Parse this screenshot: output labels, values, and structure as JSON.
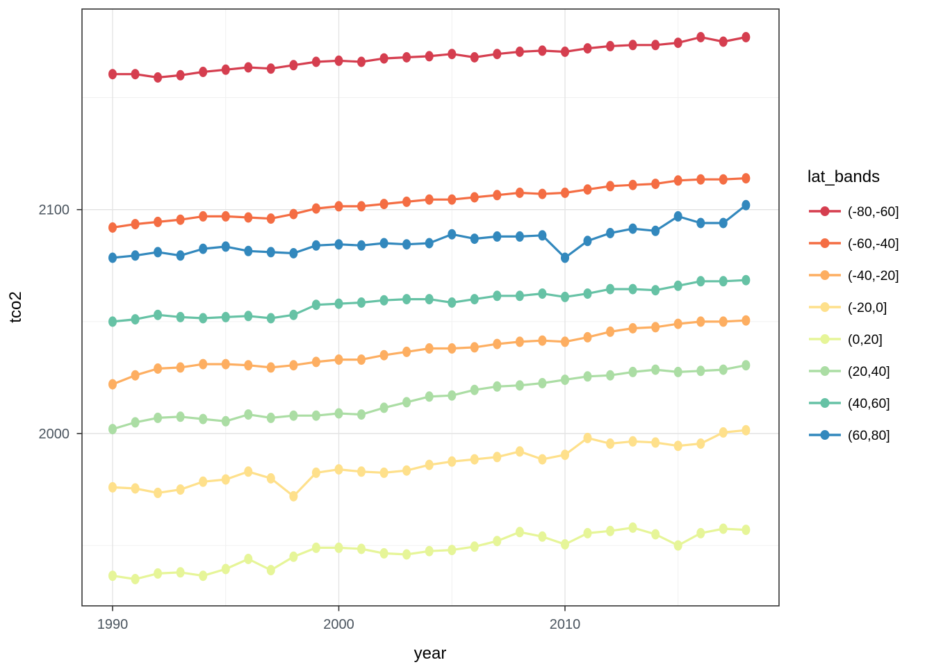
{
  "figure": {
    "background": "#ffffff"
  },
  "colors": {
    "panel_background": "#ffffff",
    "panel_border": "#333333",
    "grid_major": "#e3e3e3",
    "grid_minor": "#f0f0f0",
    "tick_mark": "#333333",
    "tick_label": "#4a545e",
    "axis_title": "#000000",
    "legend_text": "#000000"
  },
  "chart_data": {
    "type": "line",
    "title": "",
    "xlabel": "year",
    "ylabel": "tco2",
    "legend_title": "lat_bands",
    "legend_position": "right",
    "grid": true,
    "xlim": [
      1988.6,
      2019.4
    ],
    "ylim": [
      1923,
      2189.5
    ],
    "x_ticks": [
      {
        "v": 1990,
        "label": "1990"
      },
      {
        "v": 2000,
        "label": "2000"
      },
      {
        "v": 2010,
        "label": "2010"
      }
    ],
    "x_minor_ticks": [
      1995,
      2005,
      2015
    ],
    "y_ticks": [
      {
        "v": 2000,
        "label": "2000"
      },
      {
        "v": 2100,
        "label": "2100"
      }
    ],
    "y_minor_ticks": [
      1950,
      2050,
      2150
    ],
    "x": [
      1990,
      1991,
      1992,
      1993,
      1994,
      1995,
      1996,
      1997,
      1998,
      1999,
      2000,
      2001,
      2002,
      2003,
      2004,
      2005,
      2006,
      2007,
      2008,
      2009,
      2010,
      2011,
      2012,
      2013,
      2014,
      2015,
      2016,
      2017,
      2018
    ],
    "series": [
      {
        "name": "(-80,-60]",
        "color": "#d53e4f",
        "values": [
          2160.5,
          2160.5,
          2159,
          2160,
          2161.5,
          2162.5,
          2163.5,
          2163,
          2164.5,
          2166,
          2166.5,
          2166,
          2167.5,
          2168,
          2168.5,
          2169.5,
          2168,
          2169.5,
          2170.5,
          2171,
          2170.5,
          2172,
          2173,
          2173.5,
          2173.5,
          2174.5,
          2177,
          2175,
          2177
        ]
      },
      {
        "name": "(-60,-40]",
        "color": "#f46d43",
        "values": [
          2092,
          2093.5,
          2094.5,
          2095.5,
          2097,
          2097,
          2096.5,
          2096,
          2098,
          2100.5,
          2101.5,
          2101.5,
          2102.5,
          2103.5,
          2104.5,
          2104.5,
          2105.5,
          2106.5,
          2107.5,
          2107,
          2107.5,
          2109,
          2110.5,
          2111,
          2111.5,
          2113,
          2113.5,
          2113.5,
          2114
        ]
      },
      {
        "name": "(-40,-20]",
        "color": "#fdae61",
        "values": [
          2022,
          2026,
          2029,
          2029.5,
          2031,
          2031,
          2030.5,
          2029.5,
          2030.5,
          2032,
          2033,
          2033,
          2035,
          2036.5,
          2038,
          2038,
          2038.5,
          2040,
          2041,
          2041.5,
          2041,
          2043,
          2045.5,
          2047,
          2047.5,
          2049,
          2050,
          2050,
          2050.5
        ]
      },
      {
        "name": "(-20,0]",
        "color": "#fee08b",
        "values": [
          1976,
          1975.5,
          1973.5,
          1975,
          1978.5,
          1979.5,
          1983,
          1980,
          1972,
          1982.5,
          1984,
          1983,
          1982.5,
          1983.5,
          1986,
          1987.5,
          1988.5,
          1989.5,
          1992,
          1988.5,
          1990.5,
          1998,
          1995.5,
          1996.5,
          1996,
          1994.5,
          1995.5,
          2000.5,
          2001.5
        ]
      },
      {
        "name": "(0,20]",
        "color": "#e6f598",
        "values": [
          1936.5,
          1935,
          1937.5,
          1938,
          1936.5,
          1939.5,
          1944,
          1939,
          1945,
          1949,
          1949,
          1948.5,
          1946.5,
          1946,
          1947.5,
          1948,
          1949.5,
          1952,
          1956,
          1954,
          1950.5,
          1955.5,
          1956.5,
          1958,
          1955,
          1950,
          1955.5,
          1957.5,
          1957
        ]
      },
      {
        "name": "(20,40]",
        "color": "#abdda4",
        "values": [
          2002,
          2005,
          2007,
          2007.5,
          2006.5,
          2005.5,
          2008.5,
          2007,
          2008,
          2008,
          2009,
          2008.5,
          2011.5,
          2014,
          2016.5,
          2017,
          2019.5,
          2021,
          2021.5,
          2022.5,
          2024,
          2025.5,
          2026,
          2027.5,
          2028.5,
          2027.5,
          2028,
          2028.5,
          2030.5
        ]
      },
      {
        "name": "(40,60]",
        "color": "#66c2a5",
        "values": [
          2050,
          2051,
          2053,
          2052,
          2051.5,
          2052,
          2052.5,
          2051.5,
          2053,
          2057.5,
          2058,
          2058.5,
          2059.5,
          2060,
          2060,
          2058.5,
          2060,
          2061.5,
          2061.5,
          2062.5,
          2061,
          2062.5,
          2064.5,
          2064.5,
          2064,
          2066,
          2068,
          2068,
          2068.5
        ]
      },
      {
        "name": "(60,80]",
        "color": "#3288bd",
        "values": [
          2078.5,
          2079.5,
          2081,
          2079.5,
          2082.5,
          2083.5,
          2081.5,
          2081,
          2080.5,
          2084,
          2084.5,
          2084,
          2085,
          2084.5,
          2085,
          2089,
          2087,
          2088,
          2088,
          2088.5,
          2078.5,
          2086,
          2089.5,
          2091.5,
          2090.5,
          2097,
          2094,
          2094,
          2102
        ]
      }
    ]
  }
}
